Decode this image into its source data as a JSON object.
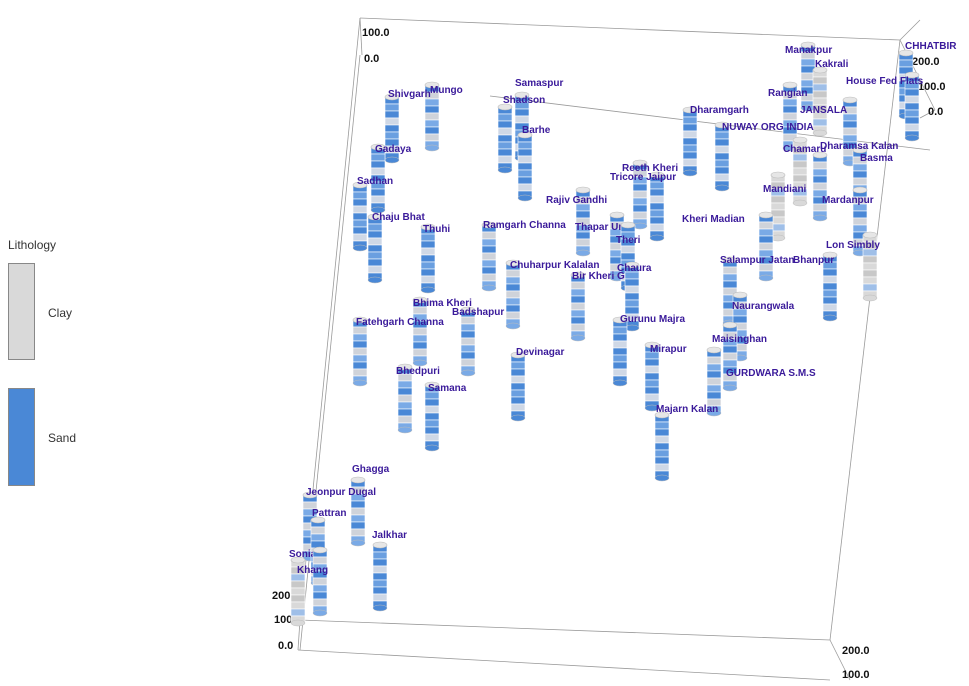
{
  "legend": {
    "title": "Lithology",
    "items": [
      {
        "label": "Clay",
        "color": "#d9d9d9"
      },
      {
        "label": "Sand",
        "color": "#4a88d6"
      }
    ]
  },
  "axis_ticks": {
    "top_left": [
      "100.0",
      "0.0"
    ],
    "top_right": [
      "200.0",
      "100.0",
      "0.0"
    ],
    "bottom_left": [
      "200.0",
      "100.0",
      "0.0"
    ],
    "bottom_right": [
      "200.0",
      "100.0"
    ]
  },
  "wells": [
    {
      "name": "Manakpur",
      "type": "mixed"
    },
    {
      "name": "CHHATBIR",
      "type": "sand"
    },
    {
      "name": "Kakrali",
      "type": "clay"
    },
    {
      "name": "House Fed Flats",
      "type": "sand"
    },
    {
      "name": "Samaspur",
      "type": "sand"
    },
    {
      "name": "Mungo",
      "type": "mixed"
    },
    {
      "name": "Shivgarh",
      "type": "sand"
    },
    {
      "name": "Shadson",
      "type": "sand"
    },
    {
      "name": "Rangian",
      "type": "mixed"
    },
    {
      "name": "JANSALA",
      "type": "mixed"
    },
    {
      "name": "Dharamgarh",
      "type": "sand"
    },
    {
      "name": "NUWAY ORG INDIA",
      "type": "sand"
    },
    {
      "name": "Barhe",
      "type": "sand"
    },
    {
      "name": "Chamaru",
      "type": "clay"
    },
    {
      "name": "Dharamsa Kalan",
      "type": "mixed"
    },
    {
      "name": "Basma",
      "type": "mixed"
    },
    {
      "name": "Gadaya",
      "type": "sand"
    },
    {
      "name": "Reeth Kheri",
      "type": "mixed"
    },
    {
      "name": "Tricore Jaipur",
      "type": "sand"
    },
    {
      "name": "Sadhan",
      "type": "sand"
    },
    {
      "name": "Mandiani",
      "type": "clay"
    },
    {
      "name": "Rajiv Gandhi",
      "type": "mixed"
    },
    {
      "name": "Mardanpur",
      "type": "mixed"
    },
    {
      "name": "Chaju Bhat",
      "type": "sand"
    },
    {
      "name": "Thuhi",
      "type": "sand"
    },
    {
      "name": "Ramgarh Channa",
      "type": "mixed"
    },
    {
      "name": "Thapar Uni",
      "type": "mixed"
    },
    {
      "name": "Kheri Madian",
      "type": "mixed"
    },
    {
      "name": "Theri",
      "type": "sand"
    },
    {
      "name": "Lon Simbly",
      "type": "clay"
    },
    {
      "name": "Salampur Jatan",
      "type": "mixed"
    },
    {
      "name": "Bhanpur",
      "type": "sand"
    },
    {
      "name": "Chuharpur Kalalan",
      "type": "mixed"
    },
    {
      "name": "Chaura",
      "type": "sand"
    },
    {
      "name": "Bir Kheri G",
      "type": "mixed"
    },
    {
      "name": "Bhima Kheri",
      "type": "mixed"
    },
    {
      "name": "Badshapur",
      "type": "mixed"
    },
    {
      "name": "Naurangwala",
      "type": "mixed"
    },
    {
      "name": "Fatehgarh Channa",
      "type": "mixed"
    },
    {
      "name": "Gurunu Majra",
      "type": "sand"
    },
    {
      "name": "Maisinghan",
      "type": "mixed"
    },
    {
      "name": "Devinagar",
      "type": "sand"
    },
    {
      "name": "Mirapur",
      "type": "sand"
    },
    {
      "name": "Bhedpuri",
      "type": "mixed"
    },
    {
      "name": "GURDWARA S.M.S",
      "type": "mixed"
    },
    {
      "name": "Samana",
      "type": "sand"
    },
    {
      "name": "Majarn Kalan",
      "type": "sand"
    },
    {
      "name": "Ghagga",
      "type": "mixed"
    },
    {
      "name": "Jeonpur Dugal",
      "type": "mixed"
    },
    {
      "name": "Pattran",
      "type": "mixed"
    },
    {
      "name": "Jalkhar",
      "type": "sand"
    },
    {
      "name": "Sonial",
      "type": "clay"
    },
    {
      "name": "Khang",
      "type": "mixed"
    }
  ]
}
